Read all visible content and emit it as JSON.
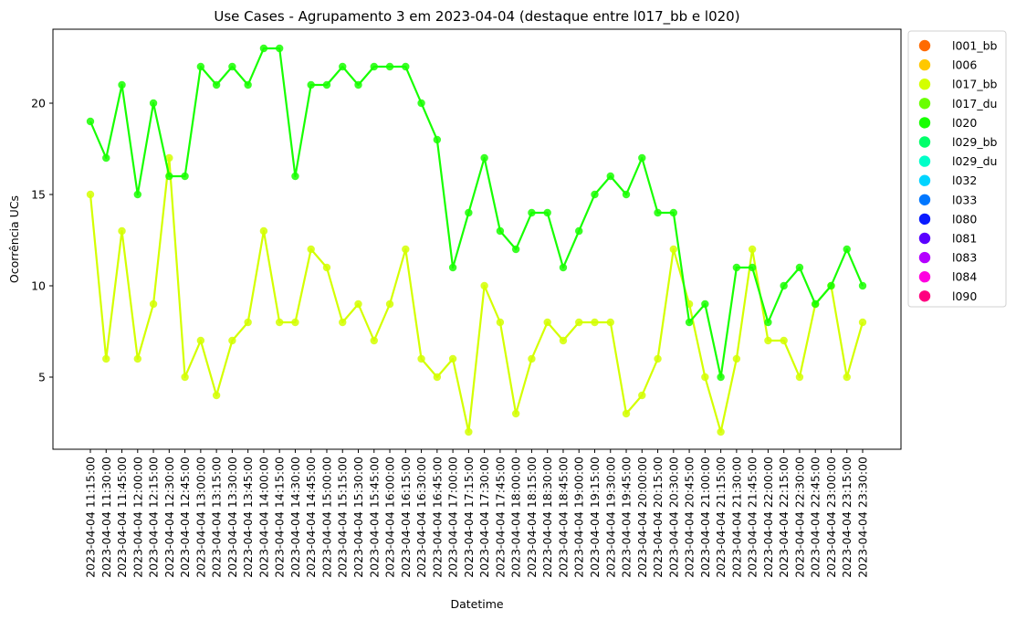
{
  "chart_data": {
    "type": "line",
    "title": "Use Cases - Agrupamento 3 em 2023-04-04 (destaque entre l017_bb e l020)",
    "xlabel": "Datetime",
    "ylabel": "Ocorrência UCs",
    "ylim": [
      1.05,
      24.05
    ],
    "yticks": [
      5,
      10,
      15,
      20
    ],
    "grid": false,
    "legend_position": "outside-right",
    "x": [
      "2023-04-04 11:15:00",
      "2023-04-04 11:30:00",
      "2023-04-04 11:45:00",
      "2023-04-04 12:00:00",
      "2023-04-04 12:15:00",
      "2023-04-04 12:30:00",
      "2023-04-04 12:45:00",
      "2023-04-04 13:00:00",
      "2023-04-04 13:15:00",
      "2023-04-04 13:30:00",
      "2023-04-04 13:45:00",
      "2023-04-04 14:00:00",
      "2023-04-04 14:15:00",
      "2023-04-04 14:30:00",
      "2023-04-04 14:45:00",
      "2023-04-04 15:00:00",
      "2023-04-04 15:15:00",
      "2023-04-04 15:30:00",
      "2023-04-04 15:45:00",
      "2023-04-04 16:00:00",
      "2023-04-04 16:15:00",
      "2023-04-04 16:30:00",
      "2023-04-04 16:45:00",
      "2023-04-04 17:00:00",
      "2023-04-04 17:15:00",
      "2023-04-04 17:30:00",
      "2023-04-04 17:45:00",
      "2023-04-04 18:00:00",
      "2023-04-04 18:15:00",
      "2023-04-04 18:30:00",
      "2023-04-04 18:45:00",
      "2023-04-04 19:00:00",
      "2023-04-04 19:15:00",
      "2023-04-04 19:30:00",
      "2023-04-04 19:45:00",
      "2023-04-04 20:00:00",
      "2023-04-04 20:15:00",
      "2023-04-04 20:30:00",
      "2023-04-04 20:45:00",
      "2023-04-04 21:00:00",
      "2023-04-04 21:15:00",
      "2023-04-04 21:30:00",
      "2023-04-04 21:45:00",
      "2023-04-04 22:00:00",
      "2023-04-04 22:15:00",
      "2023-04-04 22:30:00",
      "2023-04-04 22:45:00",
      "2023-04-04 23:00:00",
      "2023-04-04 23:15:00",
      "2023-04-04 23:30:00"
    ],
    "series": [
      {
        "name": "l017_bb",
        "color": "#d4ff00",
        "values": [
          15,
          6,
          13,
          6,
          9,
          17,
          5,
          7,
          4,
          7,
          8,
          13,
          8,
          8,
          12,
          11,
          8,
          9,
          7,
          9,
          12,
          6,
          5,
          6,
          2,
          10,
          8,
          3,
          6,
          8,
          7,
          8,
          8,
          8,
          3,
          4,
          6,
          12,
          9,
          5,
          2,
          6,
          12,
          7,
          7,
          5,
          9,
          10,
          5,
          8
        ]
      },
      {
        "name": "l020",
        "color": "#17ff00",
        "values": [
          19,
          17,
          21,
          15,
          20,
          16,
          16,
          22,
          21,
          22,
          21,
          23,
          23,
          16,
          21,
          21,
          22,
          21,
          22,
          22,
          22,
          20,
          18,
          11,
          14,
          17,
          13,
          12,
          14,
          14,
          11,
          13,
          15,
          16,
          15,
          17,
          14,
          14,
          8,
          9,
          5,
          11,
          11,
          8,
          10,
          11,
          9,
          10,
          12,
          10
        ]
      }
    ],
    "legend": [
      {
        "label": "l001_bb",
        "color": "#ff6a00"
      },
      {
        "label": "l006",
        "color": "#ffc800"
      },
      {
        "label": "l017_bb",
        "color": "#d4ff00"
      },
      {
        "label": "l017_du",
        "color": "#6aff00"
      },
      {
        "label": "l020",
        "color": "#17ff00"
      },
      {
        "label": "l029_bb",
        "color": "#00ff6a"
      },
      {
        "label": "l029_du",
        "color": "#00ffc8"
      },
      {
        "label": "l032",
        "color": "#00d4ff"
      },
      {
        "label": "l033",
        "color": "#0077ff"
      },
      {
        "label": "l080",
        "color": "#0a1aff"
      },
      {
        "label": "l081",
        "color": "#5a00ff"
      },
      {
        "label": "l083",
        "color": "#b400ff"
      },
      {
        "label": "l084",
        "color": "#ff00e0"
      },
      {
        "label": "l090",
        "color": "#ff0080"
      }
    ]
  }
}
